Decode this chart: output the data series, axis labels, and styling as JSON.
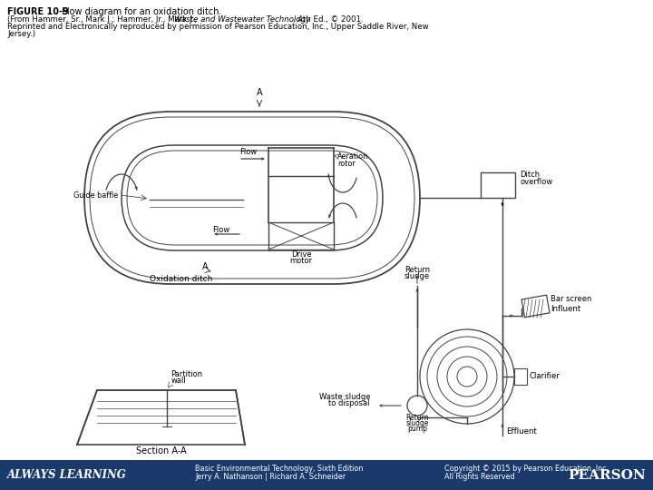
{
  "footer_bg": "#1a3a6b",
  "footer_text_color": "#ffffff",
  "bg_color": "#ffffff",
  "lc": "#444444",
  "title_bold": "FIGURE 10-9",
  "title_rest": "  Flow diagram for an oxidation ditch.",
  "sub1_pre": "(From Hammer, Sr., Mark J.; Hammer, Jr., Mark J., ",
  "sub1_italic": "Waste and Wastewater Technology",
  "sub1_post": ", 4th Ed., © 2001.",
  "sub2": "Reprinted and Electronically reproduced by permission of Pearson Education, Inc., Upper Saddle River, New",
  "sub3": "Jersey.)",
  "footer_left1": "Basic Environmental Technology, Sixth Edition",
  "footer_left2": "Jerry A. Nathanson | Richard A. Schneider",
  "footer_right1": "Copyright © 2015 by Pearson Education, Inc",
  "footer_right2": "All Rights Reserved"
}
